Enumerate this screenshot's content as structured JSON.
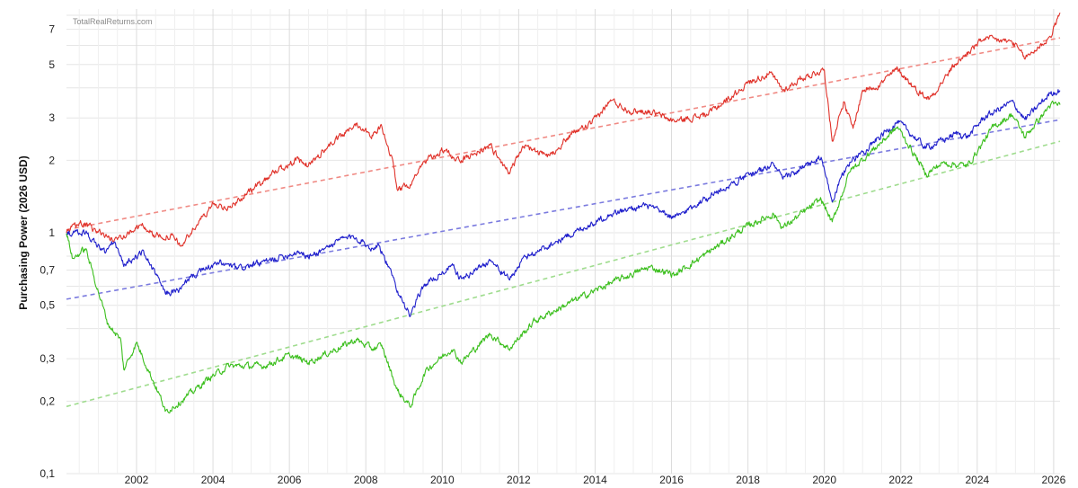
{
  "chart_data": {
    "type": "line",
    "watermark": "TotalRealReturns.com",
    "ylabel": "Purchasing Power (2026 USD)",
    "yscale": "log",
    "ylim": [
      0.1,
      8.5
    ],
    "xlim": [
      "2000-03-01",
      "2026-03-01"
    ],
    "yticks": [
      {
        "value": 0.1,
        "label": "0,1"
      },
      {
        "value": 0.2,
        "label": "0,2"
      },
      {
        "value": 0.3,
        "label": "0,3"
      },
      {
        "value": 0.5,
        "label": "0,5"
      },
      {
        "value": 0.7,
        "label": "0,7"
      },
      {
        "value": 1,
        "label": "1"
      },
      {
        "value": 2,
        "label": "2"
      },
      {
        "value": 3,
        "label": "3"
      },
      {
        "value": 5,
        "label": "5"
      },
      {
        "value": 7,
        "label": "7"
      }
    ],
    "xticks": [
      "2002",
      "2004",
      "2006",
      "2008",
      "2010",
      "2012",
      "2014",
      "2016",
      "2018",
      "2020",
      "2022",
      "2024",
      "2026"
    ],
    "grid": true,
    "legend": "none",
    "series": [
      {
        "color": "#e0322a",
        "style": "solid",
        "points": [
          [
            "2000-03-01",
            1.0
          ],
          [
            "2000-07-01",
            1.1
          ],
          [
            "2000-12-01",
            1.03
          ],
          [
            "2001-06-01",
            0.93
          ],
          [
            "2001-10-01",
            1.0
          ],
          [
            "2002-03-01",
            1.07
          ],
          [
            "2002-07-01",
            0.97
          ],
          [
            "2002-12-01",
            0.97
          ],
          [
            "2003-03-01",
            0.88
          ],
          [
            "2003-06-01",
            1.0
          ],
          [
            "2004-01-01",
            1.32
          ],
          [
            "2004-06-01",
            1.27
          ],
          [
            "2005-01-01",
            1.5
          ],
          [
            "2005-08-01",
            1.78
          ],
          [
            "2006-03-01",
            2.0
          ],
          [
            "2006-07-01",
            1.9
          ],
          [
            "2007-01-01",
            2.28
          ],
          [
            "2007-07-01",
            2.62
          ],
          [
            "2007-10-01",
            2.85
          ],
          [
            "2008-03-01",
            2.55
          ],
          [
            "2008-06-01",
            2.75
          ],
          [
            "2008-10-01",
            1.85
          ],
          [
            "2008-11-01",
            1.5
          ],
          [
            "2009-03-01",
            1.6
          ],
          [
            "2009-06-01",
            1.9
          ],
          [
            "2010-01-01",
            2.2
          ],
          [
            "2010-07-01",
            2.0
          ],
          [
            "2011-04-01",
            2.3
          ],
          [
            "2011-10-01",
            1.78
          ],
          [
            "2012-03-01",
            2.3
          ],
          [
            "2012-10-01",
            2.05
          ],
          [
            "2013-06-01",
            2.6
          ],
          [
            "2013-12-01",
            2.85
          ],
          [
            "2014-06-01",
            3.55
          ],
          [
            "2014-12-01",
            3.2
          ],
          [
            "2015-06-01",
            3.2
          ],
          [
            "2016-02-01",
            2.9
          ],
          [
            "2016-12-01",
            3.1
          ],
          [
            "2017-07-01",
            3.6
          ],
          [
            "2018-01-01",
            4.2
          ],
          [
            "2018-08-01",
            4.6
          ],
          [
            "2018-12-01",
            3.9
          ],
          [
            "2019-06-01",
            4.4
          ],
          [
            "2020-01-01",
            4.75
          ],
          [
            "2020-03-15",
            2.4
          ],
          [
            "2020-07-01",
            3.5
          ],
          [
            "2020-10-01",
            2.7
          ],
          [
            "2021-01-01",
            3.9
          ],
          [
            "2021-06-01",
            4.1
          ],
          [
            "2021-12-01",
            4.8
          ],
          [
            "2022-06-01",
            3.9
          ],
          [
            "2022-10-01",
            3.6
          ],
          [
            "2023-06-01",
            5.0
          ],
          [
            "2024-03-01",
            6.4
          ],
          [
            "2024-12-01",
            6.2
          ],
          [
            "2025-04-01",
            5.3
          ],
          [
            "2025-12-01",
            6.5
          ],
          [
            "2026-03-01",
            8.2
          ]
        ]
      },
      {
        "color": "#2020cc",
        "style": "solid",
        "points": [
          [
            "2000-03-01",
            1.0
          ],
          [
            "2000-09-01",
            1.0
          ],
          [
            "2001-03-01",
            0.83
          ],
          [
            "2001-06-01",
            0.92
          ],
          [
            "2001-09-01",
            0.73
          ],
          [
            "2002-03-01",
            0.84
          ],
          [
            "2002-09-01",
            0.6
          ],
          [
            "2002-10-01",
            0.56
          ],
          [
            "2003-03-01",
            0.58
          ],
          [
            "2003-06-01",
            0.66
          ],
          [
            "2004-03-01",
            0.75
          ],
          [
            "2004-09-01",
            0.71
          ],
          [
            "2005-06-01",
            0.76
          ],
          [
            "2006-04-01",
            0.84
          ],
          [
            "2006-07-01",
            0.79
          ],
          [
            "2007-06-01",
            0.95
          ],
          [
            "2007-10-01",
            0.96
          ],
          [
            "2008-03-01",
            0.86
          ],
          [
            "2008-05-01",
            0.9
          ],
          [
            "2008-11-01",
            0.58
          ],
          [
            "2009-03-01",
            0.45
          ],
          [
            "2009-07-01",
            0.6
          ],
          [
            "2010-04-01",
            0.73
          ],
          [
            "2010-07-01",
            0.64
          ],
          [
            "2011-04-01",
            0.77
          ],
          [
            "2011-10-01",
            0.64
          ],
          [
            "2012-03-01",
            0.79
          ],
          [
            "2013-05-01",
            0.98
          ],
          [
            "2014-06-01",
            1.2
          ],
          [
            "2015-05-01",
            1.3
          ],
          [
            "2016-02-01",
            1.15
          ],
          [
            "2016-12-01",
            1.4
          ],
          [
            "2017-12-01",
            1.7
          ],
          [
            "2018-09-01",
            1.93
          ],
          [
            "2018-12-01",
            1.67
          ],
          [
            "2019-12-01",
            2.05
          ],
          [
            "2020-03-15",
            1.35
          ],
          [
            "2020-08-01",
            1.9
          ],
          [
            "2021-12-01",
            2.9
          ],
          [
            "2022-09-01",
            2.25
          ],
          [
            "2023-07-01",
            2.6
          ],
          [
            "2023-10-01",
            2.5
          ],
          [
            "2024-03-01",
            3.0
          ],
          [
            "2024-12-01",
            3.5
          ],
          [
            "2025-04-01",
            2.95
          ],
          [
            "2025-12-01",
            3.8
          ],
          [
            "2026-03-01",
            3.9
          ]
        ]
      },
      {
        "color": "#3cbf1e",
        "style": "solid",
        "points": [
          [
            "2000-03-01",
            1.0
          ],
          [
            "2000-05-01",
            0.78
          ],
          [
            "2000-09-01",
            0.86
          ],
          [
            "2001-04-01",
            0.42
          ],
          [
            "2001-08-01",
            0.36
          ],
          [
            "2001-09-01",
            0.27
          ],
          [
            "2002-01-01",
            0.35
          ],
          [
            "2002-09-01",
            0.2
          ],
          [
            "2002-10-01",
            0.18
          ],
          [
            "2003-03-01",
            0.2
          ],
          [
            "2003-12-01",
            0.25
          ],
          [
            "2004-06-01",
            0.28
          ],
          [
            "2005-05-01",
            0.28
          ],
          [
            "2006-01-01",
            0.31
          ],
          [
            "2006-07-01",
            0.29
          ],
          [
            "2007-06-01",
            0.34
          ],
          [
            "2007-10-01",
            0.36
          ],
          [
            "2008-03-01",
            0.33
          ],
          [
            "2008-06-01",
            0.34
          ],
          [
            "2008-11-01",
            0.22
          ],
          [
            "2009-03-01",
            0.19
          ],
          [
            "2009-08-01",
            0.27
          ],
          [
            "2010-04-01",
            0.33
          ],
          [
            "2010-07-01",
            0.29
          ],
          [
            "2011-04-01",
            0.38
          ],
          [
            "2011-10-01",
            0.33
          ],
          [
            "2012-06-01",
            0.43
          ],
          [
            "2013-06-01",
            0.52
          ],
          [
            "2014-06-01",
            0.62
          ],
          [
            "2015-06-01",
            0.72
          ],
          [
            "2016-02-01",
            0.67
          ],
          [
            "2016-12-01",
            0.82
          ],
          [
            "2017-12-01",
            1.05
          ],
          [
            "2018-09-01",
            1.2
          ],
          [
            "2018-12-01",
            1.05
          ],
          [
            "2019-12-01",
            1.38
          ],
          [
            "2020-03-15",
            1.1
          ],
          [
            "2020-09-01",
            1.8
          ],
          [
            "2021-12-01",
            2.75
          ],
          [
            "2022-09-01",
            1.75
          ],
          [
            "2023-02-01",
            1.95
          ],
          [
            "2023-10-01",
            1.9
          ],
          [
            "2024-06-01",
            2.75
          ],
          [
            "2024-12-01",
            3.1
          ],
          [
            "2025-04-01",
            2.5
          ],
          [
            "2025-12-01",
            3.4
          ],
          [
            "2026-03-01",
            3.4
          ]
        ]
      },
      {
        "color": "#f08a84",
        "style": "dashed",
        "points": [
          [
            "2000-03-01",
            1.03
          ],
          [
            "2026-03-01",
            6.45
          ]
        ]
      },
      {
        "color": "#7b7bdf",
        "style": "dashed",
        "points": [
          [
            "2000-03-01",
            0.53
          ],
          [
            "2026-03-01",
            2.95
          ]
        ]
      },
      {
        "color": "#9fdc8e",
        "style": "dashed",
        "points": [
          [
            "2000-03-01",
            0.19
          ],
          [
            "2026-03-01",
            2.4
          ]
        ]
      }
    ]
  }
}
